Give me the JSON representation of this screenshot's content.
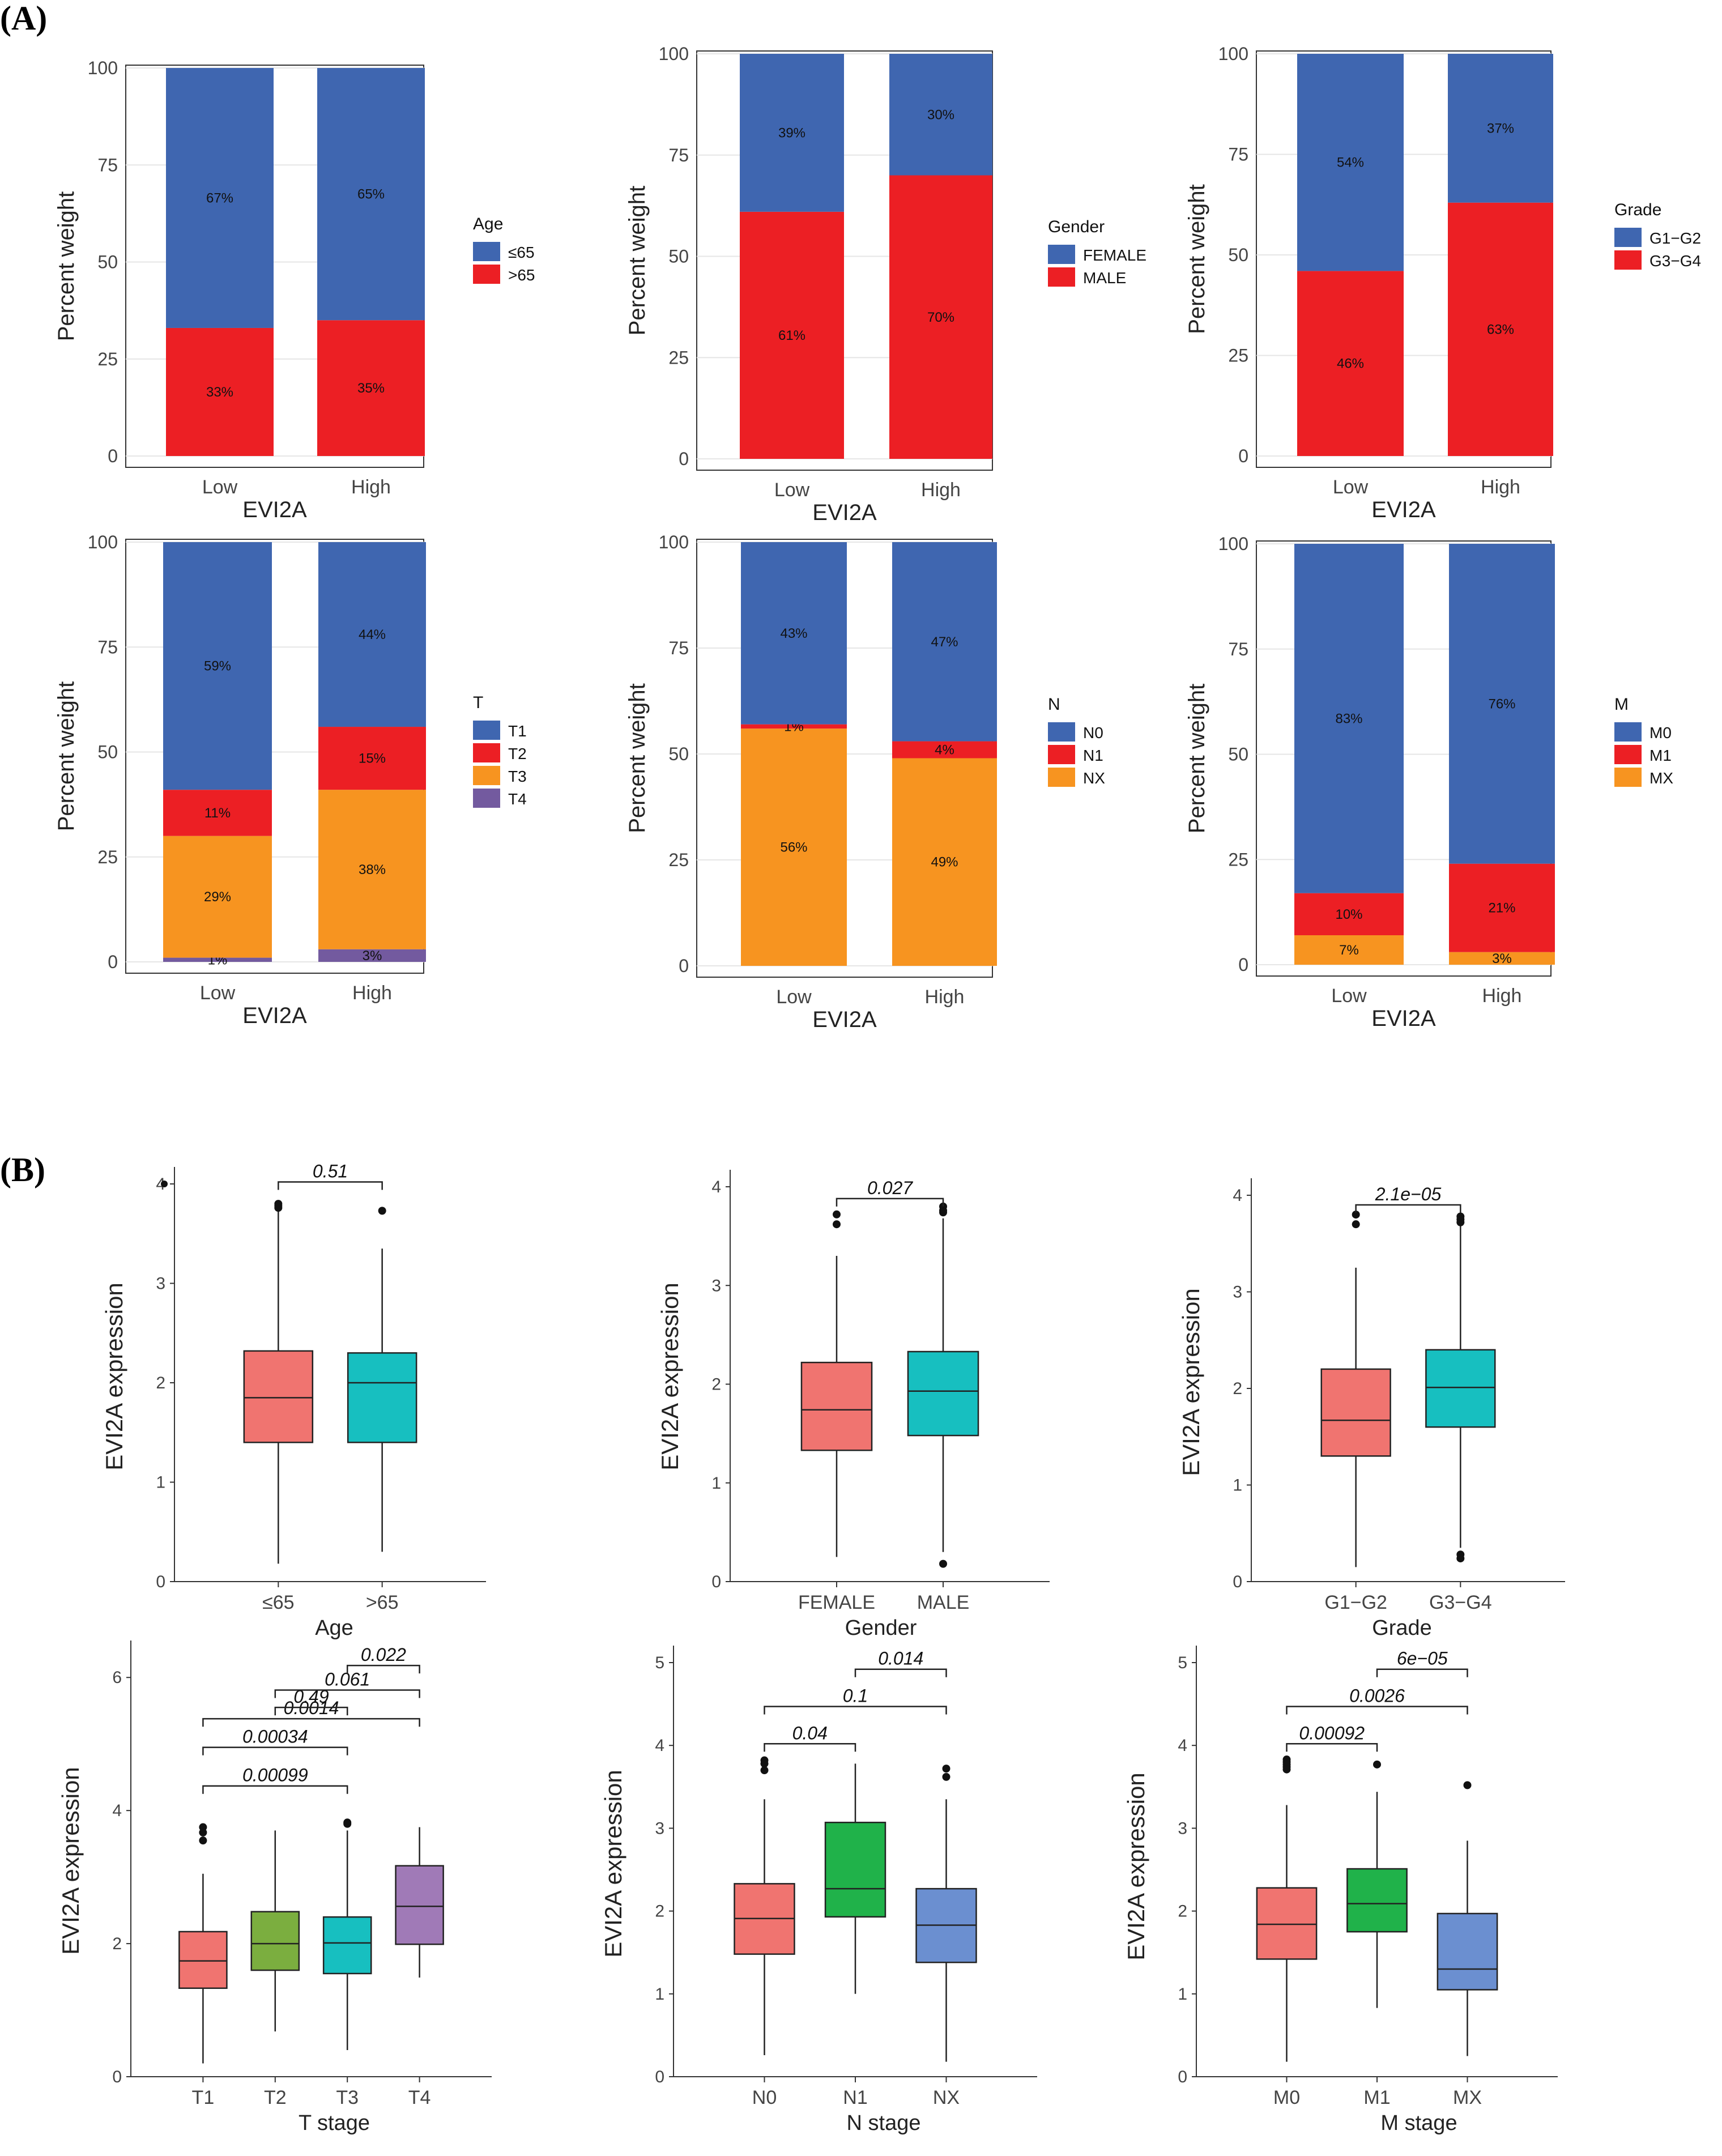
{
  "panel_labels": [
    "(A)",
    "(B)"
  ],
  "colors": {
    "blue": "#3F66B0",
    "red": "#EC1F24",
    "orange": "#F79420",
    "purple": "#735A9F",
    "box_salmon": "#F07470",
    "box_teal": "#17BFC0",
    "box_green": "#20B24A",
    "box_olive": "#7BAE3F",
    "box_purple": "#A07AB7",
    "box_lightblue": "#6B8FD0"
  },
  "chart_data": [
    {
      "type": "bar",
      "id": "A1",
      "stacked": true,
      "categories": [
        "Low",
        "High"
      ],
      "xlabel": "EVI2A",
      "ylabel": "Percent weight",
      "ylim": [
        0,
        100
      ],
      "yticks": [
        0,
        25,
        50,
        75,
        100
      ],
      "legend_title": "Age",
      "legend": [
        {
          "name": "≤65",
          "color": "blue"
        },
        {
          "name": ">65",
          "color": "red"
        }
      ],
      "series": [
        {
          "name": ">65",
          "color": "red",
          "values": [
            33,
            35
          ],
          "labels": [
            "33%",
            "35%"
          ]
        },
        {
          "name": "≤65",
          "color": "blue",
          "values": [
            67,
            65
          ],
          "labels": [
            "67%",
            "65%"
          ]
        }
      ]
    },
    {
      "type": "bar",
      "id": "A2",
      "stacked": true,
      "categories": [
        "Low",
        "High"
      ],
      "xlabel": "EVI2A",
      "ylabel": "Percent weight",
      "ylim": [
        0,
        100
      ],
      "yticks": [
        0,
        25,
        50,
        75,
        100
      ],
      "legend_title": "Gender",
      "legend": [
        {
          "name": "FEMALE",
          "color": "blue"
        },
        {
          "name": "MALE",
          "color": "red"
        }
      ],
      "series": [
        {
          "name": "MALE",
          "color": "red",
          "values": [
            61,
            70
          ],
          "labels": [
            "61%",
            "70%"
          ]
        },
        {
          "name": "FEMALE",
          "color": "blue",
          "values": [
            39,
            30
          ],
          "labels": [
            "39%",
            "30%"
          ]
        }
      ]
    },
    {
      "type": "bar",
      "id": "A3",
      "stacked": true,
      "categories": [
        "Low",
        "High"
      ],
      "xlabel": "EVI2A",
      "ylabel": "Percent weight",
      "ylim": [
        0,
        100
      ],
      "yticks": [
        0,
        25,
        50,
        75,
        100
      ],
      "legend_title": "Grade",
      "legend": [
        {
          "name": "G1−G2",
          "color": "blue"
        },
        {
          "name": "G3−G4",
          "color": "red"
        }
      ],
      "series": [
        {
          "name": "G3−G4",
          "color": "red",
          "values": [
            46,
            63
          ],
          "labels": [
            "46%",
            "63%"
          ]
        },
        {
          "name": "G1−G2",
          "color": "blue",
          "values": [
            54,
            37
          ],
          "labels": [
            "54%",
            "37%"
          ]
        }
      ]
    },
    {
      "type": "bar",
      "id": "A4",
      "stacked": true,
      "categories": [
        "Low",
        "High"
      ],
      "xlabel": "EVI2A",
      "ylabel": "Percent weight",
      "ylim": [
        0,
        100
      ],
      "yticks": [
        0,
        25,
        50,
        75,
        100
      ],
      "legend_title": "T",
      "legend": [
        {
          "name": "T1",
          "color": "blue"
        },
        {
          "name": "T2",
          "color": "red"
        },
        {
          "name": "T3",
          "color": "orange"
        },
        {
          "name": "T4",
          "color": "purple"
        }
      ],
      "series": [
        {
          "name": "T4",
          "color": "purple",
          "values": [
            1,
            3
          ],
          "labels": [
            "1%",
            "3%"
          ]
        },
        {
          "name": "T3",
          "color": "orange",
          "values": [
            29,
            38
          ],
          "labels": [
            "29%",
            "38%"
          ]
        },
        {
          "name": "T2",
          "color": "red",
          "values": [
            11,
            15
          ],
          "labels": [
            "11%",
            "15%"
          ]
        },
        {
          "name": "T1",
          "color": "blue",
          "values": [
            59,
            44
          ],
          "labels": [
            "59%",
            "44%"
          ]
        }
      ]
    },
    {
      "type": "bar",
      "id": "A5",
      "stacked": true,
      "categories": [
        "Low",
        "High"
      ],
      "xlabel": "EVI2A",
      "ylabel": "Percent weight",
      "ylim": [
        0,
        100
      ],
      "yticks": [
        0,
        25,
        50,
        75,
        100
      ],
      "legend_title": "N",
      "legend": [
        {
          "name": "N0",
          "color": "blue"
        },
        {
          "name": "N1",
          "color": "red"
        },
        {
          "name": "NX",
          "color": "orange"
        }
      ],
      "series": [
        {
          "name": "NX",
          "color": "orange",
          "values": [
            56,
            49
          ],
          "labels": [
            "56%",
            "49%"
          ]
        },
        {
          "name": "N1",
          "color": "red",
          "values": [
            1,
            4
          ],
          "labels": [
            "1%",
            "4%"
          ]
        },
        {
          "name": "N0",
          "color": "blue",
          "values": [
            43,
            47
          ],
          "labels": [
            "43%",
            "47%"
          ]
        }
      ]
    },
    {
      "type": "bar",
      "id": "A6",
      "stacked": true,
      "categories": [
        "Low",
        "High"
      ],
      "xlabel": "EVI2A",
      "ylabel": "Percent weight",
      "ylim": [
        0,
        100
      ],
      "yticks": [
        0,
        25,
        50,
        75,
        100
      ],
      "legend_title": "M",
      "legend": [
        {
          "name": "M0",
          "color": "blue"
        },
        {
          "name": "M1",
          "color": "red"
        },
        {
          "name": "MX",
          "color": "orange"
        }
      ],
      "series": [
        {
          "name": "MX",
          "color": "orange",
          "values": [
            7,
            3
          ],
          "labels": [
            "7%",
            "3%"
          ]
        },
        {
          "name": "M1",
          "color": "red",
          "values": [
            10,
            21
          ],
          "labels": [
            "10%",
            "21%"
          ]
        },
        {
          "name": "M0",
          "color": "blue",
          "values": [
            83,
            76
          ],
          "labels": [
            "83%",
            "76%"
          ]
        }
      ]
    },
    {
      "type": "box",
      "id": "B1",
      "xlabel": "Age",
      "ylabel": "EVI2A  expression",
      "ylim": [
        0,
        4
      ],
      "yticks": [
        0,
        1,
        2,
        3,
        4
      ],
      "categories": [
        "≤65",
        ">65"
      ],
      "boxes": [
        {
          "color": "box_salmon",
          "q1": 1.4,
          "median": 1.85,
          "q3": 2.32,
          "lo": 0.18,
          "hi": 3.75,
          "outliers": [
            3.8,
            3.78,
            3.76
          ]
        },
        {
          "color": "box_teal",
          "q1": 1.4,
          "median": 2.0,
          "q3": 2.3,
          "lo": 0.3,
          "hi": 3.35,
          "outliers": [
            3.73
          ]
        }
      ],
      "comparisons": [
        {
          "a": 0,
          "b": 1,
          "p": "0.51",
          "y": 4.02
        }
      ],
      "extra_points": [
        {
          "x": -0.5,
          "y": 4.0
        }
      ]
    },
    {
      "type": "box",
      "id": "B2",
      "xlabel": "Gender",
      "ylabel": "EVI2A  expression",
      "ylim": [
        0,
        4
      ],
      "yticks": [
        0,
        1,
        2,
        3,
        4
      ],
      "categories": [
        "FEMALE",
        "MALE"
      ],
      "boxes": [
        {
          "color": "box_salmon",
          "q1": 1.33,
          "median": 1.74,
          "q3": 2.22,
          "lo": 0.25,
          "hi": 3.3,
          "outliers": [
            3.72,
            3.62
          ]
        },
        {
          "color": "box_teal",
          "q1": 1.48,
          "median": 1.93,
          "q3": 2.33,
          "lo": 0.3,
          "hi": 3.68,
          "outliers": [
            3.8,
            3.76,
            3.74,
            0.18
          ]
        }
      ],
      "comparisons": [
        {
          "a": 0,
          "b": 1,
          "p": "0.027",
          "y": 3.88
        }
      ]
    },
    {
      "type": "box",
      "id": "B3",
      "xlabel": "Grade",
      "ylabel": "EVI2A  expression",
      "ylim": [
        0,
        4
      ],
      "yticks": [
        0,
        1,
        2,
        3,
        4
      ],
      "categories": [
        "G1−G2",
        "G3−G4"
      ],
      "boxes": [
        {
          "color": "box_salmon",
          "q1": 1.3,
          "median": 1.67,
          "q3": 2.2,
          "lo": 0.15,
          "hi": 3.25,
          "outliers": [
            3.8,
            3.7
          ]
        },
        {
          "color": "box_teal",
          "q1": 1.6,
          "median": 2.01,
          "q3": 2.4,
          "lo": 0.35,
          "hi": 3.7,
          "outliers": [
            3.78,
            3.75,
            3.72,
            0.28,
            0.24
          ]
        }
      ],
      "comparisons": [
        {
          "a": 0,
          "b": 1,
          "p": "2.1e−05",
          "y": 3.9
        }
      ]
    },
    {
      "type": "box",
      "id": "B4",
      "xlabel": "T stage",
      "ylabel": "EVI2A  expression",
      "ylim": [
        0,
        6.3
      ],
      "yticks": [
        0,
        2,
        4,
        6
      ],
      "categories": [
        "T1",
        "T2",
        "T3",
        "T4"
      ],
      "boxes": [
        {
          "color": "box_salmon",
          "q1": 1.33,
          "median": 1.74,
          "q3": 2.18,
          "lo": 0.2,
          "hi": 3.05,
          "outliers": [
            3.75,
            3.67,
            3.55
          ]
        },
        {
          "color": "box_olive",
          "q1": 1.6,
          "median": 2.0,
          "q3": 2.48,
          "lo": 0.68,
          "hi": 3.7,
          "outliers": []
        },
        {
          "color": "box_teal",
          "q1": 1.55,
          "median": 2.01,
          "q3": 2.4,
          "lo": 0.4,
          "hi": 3.7,
          "outliers": [
            3.82,
            3.8
          ]
        },
        {
          "color": "box_purple",
          "q1": 1.99,
          "median": 2.56,
          "q3": 3.17,
          "lo": 1.49,
          "hi": 3.75,
          "outliers": []
        }
      ],
      "comparisons": [
        {
          "a": 0,
          "b": 2,
          "p": "0.00099",
          "y": 4.37
        },
        {
          "a": 0,
          "b": 2,
          "p": "0.00034",
          "y": 4.95
        },
        {
          "a": 0,
          "b": 3,
          "p": "0.0014",
          "y": 5.38
        },
        {
          "a": 1,
          "b": 2,
          "p": "0.49",
          "y": 5.55
        },
        {
          "a": 1,
          "b": 3,
          "p": "0.061",
          "y": 5.81
        },
        {
          "a": 2,
          "b": 3,
          "p": "0.022",
          "y": 6.18
        }
      ]
    },
    {
      "type": "box",
      "id": "B5",
      "xlabel": "N stage",
      "ylabel": "EVI2A  expression",
      "ylim": [
        0,
        5
      ],
      "yticks": [
        0,
        1,
        2,
        3,
        4,
        5
      ],
      "categories": [
        "N0",
        "N1",
        "NX"
      ],
      "boxes": [
        {
          "color": "box_salmon",
          "q1": 1.48,
          "median": 1.91,
          "q3": 2.33,
          "lo": 0.26,
          "hi": 3.35,
          "outliers": [
            3.82,
            3.78,
            3.7
          ]
        },
        {
          "color": "box_green",
          "q1": 1.93,
          "median": 2.27,
          "q3": 3.07,
          "lo": 1.0,
          "hi": 3.78,
          "outliers": []
        },
        {
          "color": "box_lightblue",
          "q1": 1.38,
          "median": 1.83,
          "q3": 2.27,
          "lo": 0.18,
          "hi": 3.35,
          "outliers": [
            3.72,
            3.62
          ]
        }
      ],
      "comparisons": [
        {
          "a": 0,
          "b": 1,
          "p": "0.04",
          "y": 4.02
        },
        {
          "a": 0,
          "b": 2,
          "p": "0.1",
          "y": 4.47
        },
        {
          "a": 1,
          "b": 2,
          "p": "0.014",
          "y": 4.92
        }
      ]
    },
    {
      "type": "box",
      "id": "B6",
      "xlabel": "M stage",
      "ylabel": "EVI2A  expression",
      "ylim": [
        0,
        5
      ],
      "yticks": [
        0,
        1,
        2,
        3,
        4,
        5
      ],
      "categories": [
        "M0",
        "M1",
        "MX"
      ],
      "boxes": [
        {
          "color": "box_salmon",
          "q1": 1.42,
          "median": 1.84,
          "q3": 2.28,
          "lo": 0.18,
          "hi": 3.28,
          "outliers": [
            3.83,
            3.8,
            3.77,
            3.74,
            3.71
          ]
        },
        {
          "color": "box_green",
          "q1": 1.75,
          "median": 2.09,
          "q3": 2.51,
          "lo": 0.83,
          "hi": 3.44,
          "outliers": [
            3.77
          ]
        },
        {
          "color": "box_lightblue",
          "q1": 1.05,
          "median": 1.3,
          "q3": 1.97,
          "lo": 0.25,
          "hi": 2.85,
          "outliers": [
            3.52
          ]
        }
      ],
      "comparisons": [
        {
          "a": 0,
          "b": 1,
          "p": "0.00092",
          "y": 4.02
        },
        {
          "a": 0,
          "b": 2,
          "p": "0.0026",
          "y": 4.47
        },
        {
          "a": 1,
          "b": 2,
          "p": "6e−05",
          "y": 4.92
        }
      ]
    }
  ]
}
